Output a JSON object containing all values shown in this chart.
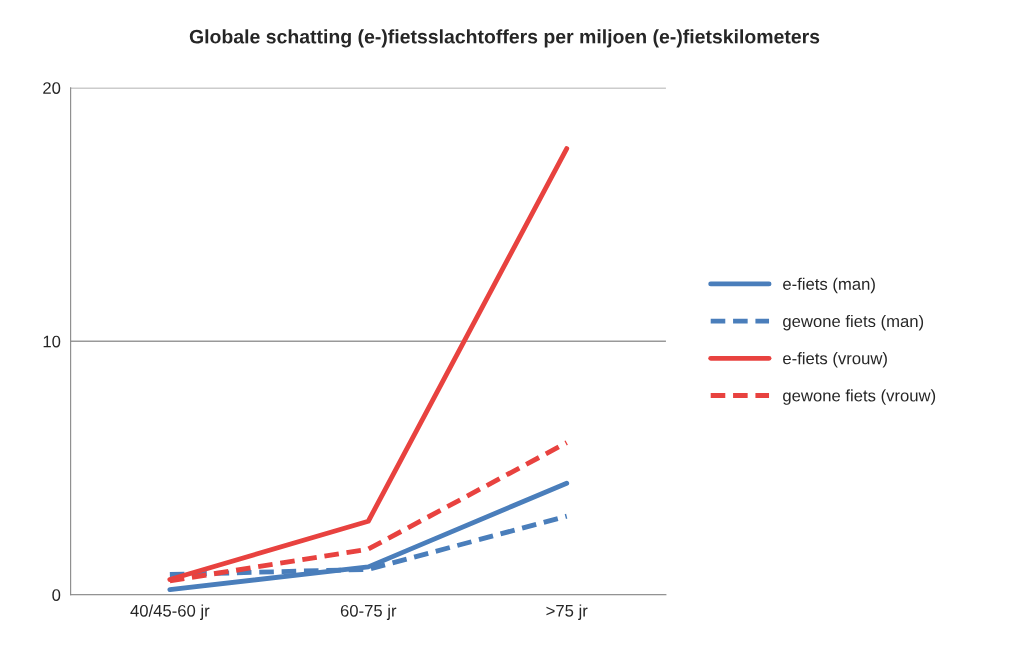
{
  "chart_data": {
    "type": "line",
    "title": "Globale schatting (e-)fietsslachtoffers per miljoen (e-)fietskilometers",
    "categories": [
      "40/45-60 jr",
      "60-75 jr",
      ">75 jr"
    ],
    "series": [
      {
        "name": "e-fiets (man)",
        "color": "#4a7ebb",
        "line_style": "solid",
        "values": [
          0.2,
          1.1,
          4.4
        ]
      },
      {
        "name": "gewone fiets (man)",
        "color": "#4a7ebb",
        "line_style": "dashed",
        "values": [
          0.8,
          1.0,
          3.1
        ]
      },
      {
        "name": "e-fiets (vrouw)",
        "color": "#e8423f",
        "line_style": "solid",
        "values": [
          0.6,
          2.9,
          17.6
        ]
      },
      {
        "name": "gewone fiets (vrouw)",
        "color": "#e8423f",
        "line_style": "dashed",
        "values": [
          0.55,
          1.8,
          6.0
        ]
      }
    ],
    "ylim": [
      0,
      20
    ],
    "yticks": [
      0,
      10,
      20
    ],
    "grid": "y",
    "legend": "right"
  }
}
